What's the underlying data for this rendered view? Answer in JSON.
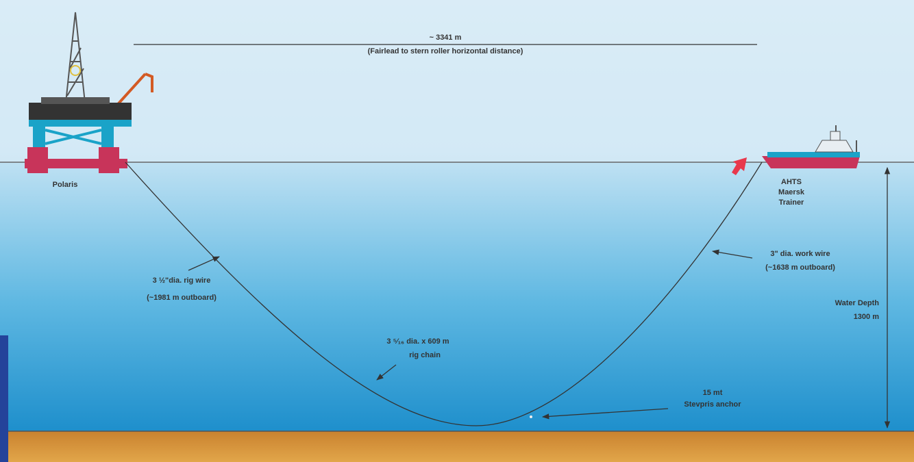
{
  "distance": {
    "value": "~ 3341 m",
    "note": "(Fairlead to stern roller horizontal distance)"
  },
  "rig": {
    "name": "Polaris"
  },
  "vessel": {
    "lines": [
      "AHTS",
      "Maersk",
      "Trainer"
    ]
  },
  "rig_wire": {
    "lines": [
      "3 ½\"dia. rig wire",
      "(~1981 m outboard)"
    ]
  },
  "rig_chain": {
    "lines": [
      "3 ⁵⁄₁₆ dia. x 609 m",
      "rig chain"
    ]
  },
  "work_wire": {
    "lines": [
      "3\" dia. work wire",
      "(~1638 m outboard)"
    ]
  },
  "water_depth": {
    "lines": [
      "Water Depth",
      "1300 m"
    ]
  },
  "anchor": {
    "lines": [
      "15 mt",
      "Stevpris anchor"
    ]
  }
}
